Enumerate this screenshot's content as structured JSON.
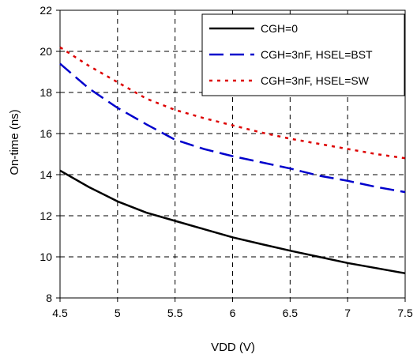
{
  "chart_data": {
    "type": "line",
    "title": "",
    "xlabel": "VDD (V)",
    "ylabel": "On-time (ns)",
    "xlim": [
      4.5,
      7.5
    ],
    "ylim": [
      8,
      22
    ],
    "x_ticks": [
      "4.5",
      "5",
      "5.5",
      "6",
      "6.5",
      "7",
      "7.5"
    ],
    "y_ticks": [
      "8",
      "10",
      "12",
      "14",
      "16",
      "18",
      "20",
      "22"
    ],
    "grid": true,
    "legend_position": "top-right",
    "series": [
      {
        "name": "CGH=0",
        "color": "#000000",
        "style": "solid",
        "x": [
          4.5,
          4.75,
          5.0,
          5.25,
          5.5,
          5.75,
          6.0,
          6.25,
          6.5,
          6.75,
          7.0,
          7.25,
          7.5
        ],
        "y": [
          14.2,
          13.4,
          12.7,
          12.15,
          11.75,
          11.35,
          10.95,
          10.62,
          10.3,
          10.0,
          9.7,
          9.45,
          9.2
        ]
      },
      {
        "name": "CGH=3nF, HSEL=BST",
        "color": "#0000cc",
        "style": "long-dash",
        "x": [
          4.5,
          4.75,
          5.0,
          5.25,
          5.5,
          5.75,
          6.0,
          6.25,
          6.5,
          6.75,
          7.0,
          7.25,
          7.5
        ],
        "y": [
          19.4,
          18.2,
          17.25,
          16.45,
          15.7,
          15.25,
          14.9,
          14.6,
          14.3,
          13.95,
          13.7,
          13.4,
          13.15
        ]
      },
      {
        "name": "CGH=3nF, HSEL=SW",
        "color": "#dd0000",
        "style": "dotted",
        "x": [
          4.5,
          4.75,
          5.0,
          5.25,
          5.5,
          5.75,
          6.0,
          6.25,
          6.5,
          6.75,
          7.0,
          7.25,
          7.5
        ],
        "y": [
          20.2,
          19.3,
          18.5,
          17.7,
          17.15,
          16.75,
          16.4,
          16.05,
          15.75,
          15.5,
          15.25,
          15.0,
          14.8
        ]
      }
    ]
  }
}
